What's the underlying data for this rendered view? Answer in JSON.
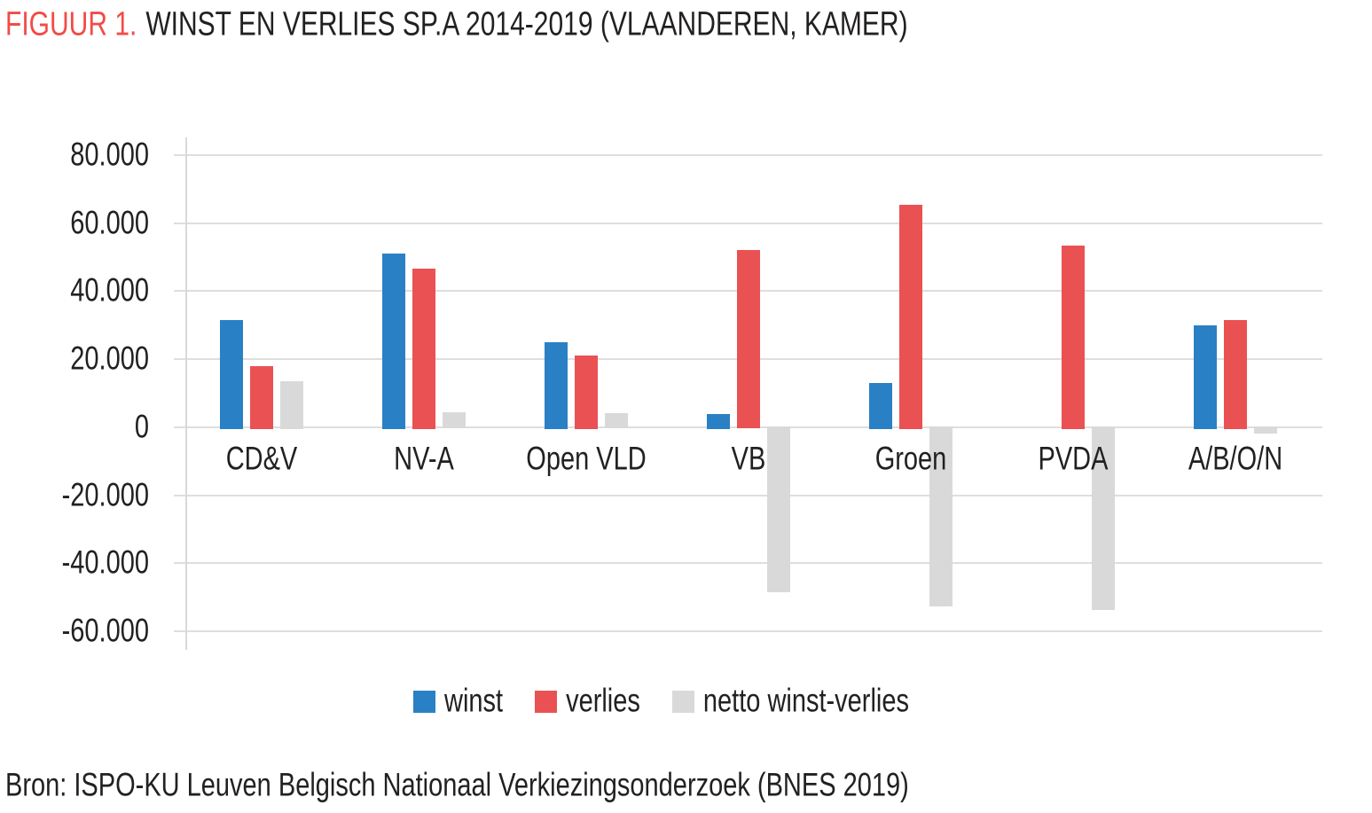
{
  "title": {
    "accent": "FIGUUR 1.",
    "text": "WINST EN VERLIES SP.A 2014-2019 (VLAANDEREN, KAMER)"
  },
  "source": {
    "text": "Bron: ISPO-KU Leuven Belgisch Nationaal Verkiezingsonderzoek (BNES 2019)"
  },
  "colors": {
    "title_accent": "#F24B46",
    "text": "#232020",
    "grid": "#DEDEDE",
    "axis": "#D9D9D9",
    "winst": "#2A80C4",
    "verlies": "#EA5153",
    "netto": "#D9D9D9"
  },
  "chart_data": {
    "type": "bar",
    "title": "WINST EN VERLIES SP.A 2014-2019 (VLAANDEREN, KAMER)",
    "categories": [
      "CD&V",
      "NV-A",
      "Open VLD",
      "VB",
      "Groen",
      "PVDA",
      "A/B/O/N"
    ],
    "series": [
      {
        "name": "winst",
        "color": "#2A80C4",
        "values": [
          31500,
          51000,
          25000,
          3800,
          13000,
          0,
          30000
        ]
      },
      {
        "name": "verlies",
        "color": "#EA5153",
        "values": [
          18000,
          46700,
          21000,
          52000,
          65500,
          53500,
          31500
        ]
      },
      {
        "name": "netto winst-verlies",
        "color": "#D9D9D9",
        "values": [
          13500,
          4300,
          4000,
          -48200,
          -52500,
          -53500,
          -1500
        ]
      }
    ],
    "xlabel": "",
    "ylabel": "",
    "ylim": [
      -60000,
      80000
    ],
    "yticks": [
      {
        "v": 80000,
        "label": "80.000"
      },
      {
        "v": 60000,
        "label": "60.000"
      },
      {
        "v": 40000,
        "label": "40.000"
      },
      {
        "v": 20000,
        "label": "20.000"
      },
      {
        "v": 0,
        "label": "0"
      },
      {
        "v": -20000,
        "label": "-20.000"
      },
      {
        "v": -40000,
        "label": "-40.000"
      },
      {
        "v": -60000,
        "label": "-60.000"
      }
    ],
    "grid": true,
    "legend_position": "bottom"
  }
}
